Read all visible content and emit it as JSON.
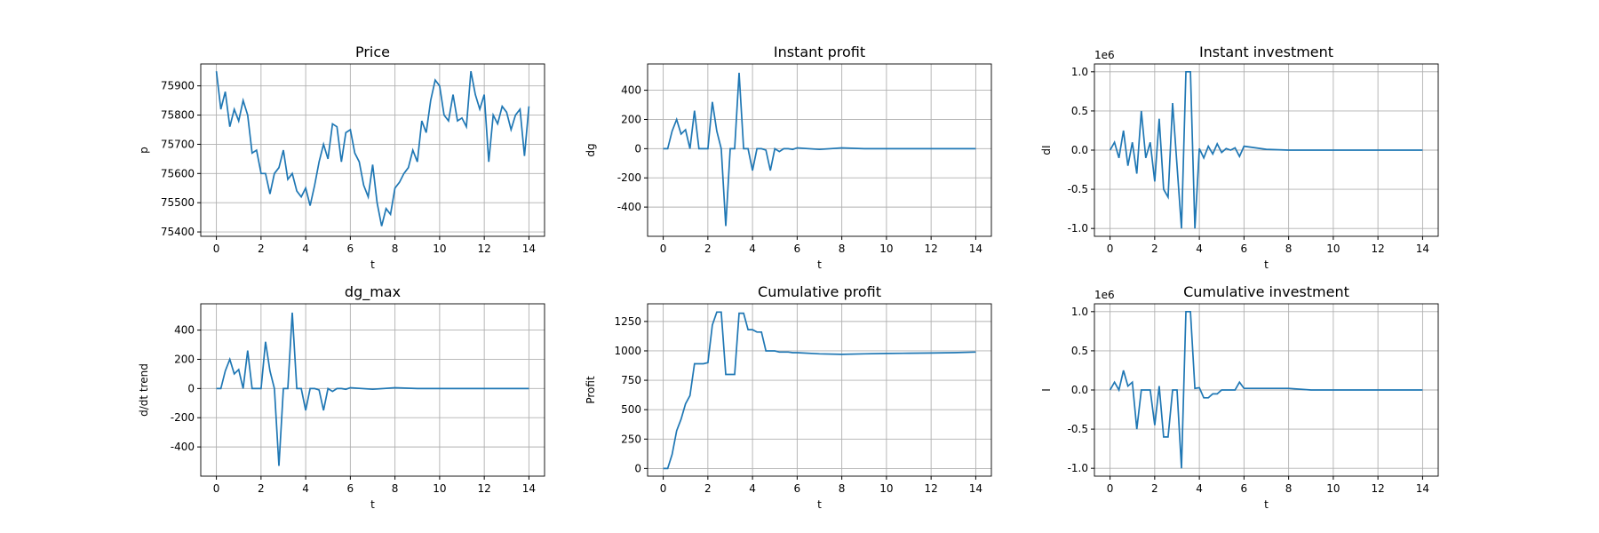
{
  "chart_data": [
    {
      "type": "line",
      "title": "Price",
      "xlabel": "t",
      "ylabel": "p",
      "color": "#1f77b4",
      "grid": true,
      "x": [
        0,
        0.2,
        0.4,
        0.6,
        0.8,
        1.0,
        1.2,
        1.4,
        1.6,
        1.8,
        2.0,
        2.2,
        2.4,
        2.6,
        2.8,
        3.0,
        3.2,
        3.4,
        3.6,
        3.8,
        4.0,
        4.2,
        4.4,
        4.6,
        4.8,
        5.0,
        5.2,
        5.4,
        5.6,
        5.8,
        6.0,
        6.2,
        6.4,
        6.6,
        6.8,
        7.0,
        7.2,
        7.4,
        7.6,
        7.8,
        8.0,
        8.2,
        8.4,
        8.6,
        8.8,
        9.0,
        9.2,
        9.4,
        9.6,
        9.8,
        10.0,
        10.2,
        10.4,
        10.6,
        10.8,
        11.0,
        11.2,
        11.4,
        11.6,
        11.8,
        12.0,
        12.2,
        12.4,
        12.6,
        12.8,
        13.0,
        13.2,
        13.4,
        13.6,
        13.8,
        14.0
      ],
      "values": [
        75950,
        75820,
        75880,
        75760,
        75820,
        75780,
        75850,
        75800,
        75670,
        75680,
        75600,
        75600,
        75530,
        75600,
        75620,
        75680,
        75580,
        75600,
        75540,
        75520,
        75550,
        75490,
        75560,
        75640,
        75700,
        75650,
        75770,
        75760,
        75640,
        75740,
        75750,
        75670,
        75640,
        75560,
        75520,
        75630,
        75500,
        75420,
        75480,
        75460,
        75550,
        75570,
        75600,
        75620,
        75680,
        75640,
        75780,
        75740,
        75850,
        75920,
        75900,
        75800,
        75780,
        75870,
        75780,
        75790,
        75760,
        75950,
        75870,
        75820,
        75870,
        75640,
        75800,
        75770,
        75830,
        75810,
        75750,
        75800,
        75820,
        75660,
        75830
      ],
      "xlim": [
        -0.7,
        14.7
      ],
      "xticks": [
        0,
        2,
        4,
        6,
        8,
        10,
        12,
        14
      ],
      "ylim": [
        75385,
        75975
      ],
      "yticks": [
        75400,
        75500,
        75600,
        75700,
        75800,
        75900
      ]
    },
    {
      "type": "line",
      "title": "Instant profit",
      "xlabel": "t",
      "ylabel": "dg",
      "color": "#1f77b4",
      "grid": true,
      "x": [
        0,
        0.2,
        0.4,
        0.6,
        0.8,
        1.0,
        1.2,
        1.4,
        1.6,
        1.8,
        2.0,
        2.2,
        2.4,
        2.6,
        2.8,
        3.0,
        3.2,
        3.4,
        3.6,
        3.8,
        4.0,
        4.2,
        4.4,
        4.6,
        4.8,
        5.0,
        5.2,
        5.4,
        5.6,
        5.8,
        6.0,
        7,
        8,
        9,
        10,
        11,
        12,
        13,
        14
      ],
      "values": [
        0,
        0,
        120,
        200,
        100,
        130,
        0,
        260,
        0,
        0,
        0,
        320,
        120,
        0,
        -530,
        0,
        0,
        520,
        0,
        0,
        -150,
        0,
        0,
        -10,
        -150,
        0,
        -20,
        0,
        0,
        -5,
        5,
        -5,
        5,
        0,
        0,
        0,
        0,
        0,
        0
      ],
      "xlim": [
        -0.7,
        14.7
      ],
      "xticks": [
        0,
        2,
        4,
        6,
        8,
        10,
        12,
        14
      ],
      "ylim": [
        -600,
        580
      ],
      "yticks": [
        -400,
        -200,
        0,
        200,
        400
      ]
    },
    {
      "type": "line",
      "title": "Instant investment",
      "xlabel": "t",
      "ylabel": "dI",
      "offset_label": "1e6",
      "color": "#1f77b4",
      "grid": true,
      "x": [
        0,
        0.2,
        0.4,
        0.6,
        0.8,
        1.0,
        1.2,
        1.4,
        1.6,
        1.8,
        2.0,
        2.2,
        2.4,
        2.6,
        2.8,
        3.0,
        3.2,
        3.4,
        3.6,
        3.8,
        4.0,
        4.2,
        4.4,
        4.6,
        4.8,
        5.0,
        5.2,
        5.4,
        5.6,
        5.8,
        6.0,
        7,
        8,
        9,
        10,
        11,
        12,
        13,
        14
      ],
      "values": [
        0,
        0.1,
        -0.1,
        0.25,
        -0.2,
        0.1,
        -0.3,
        0.5,
        -0.1,
        0.1,
        -0.4,
        0.4,
        -0.5,
        -0.6,
        0.6,
        -0.2,
        -1.0,
        1.0,
        1.0,
        -1.0,
        0.02,
        -0.1,
        0.05,
        -0.05,
        0.08,
        -0.03,
        0.02,
        0,
        0.03,
        -0.08,
        0.05,
        0.01,
        0,
        0,
        0,
        0,
        0,
        0,
        0
      ],
      "xlim": [
        -0.7,
        14.7
      ],
      "xticks": [
        0,
        2,
        4,
        6,
        8,
        10,
        12,
        14
      ],
      "ylim": [
        -1.1,
        1.1
      ],
      "yticks": [
        {
          "value": -1,
          "label": "-1.0"
        },
        -0.5,
        {
          "value": 0,
          "label": "0.0"
        },
        0.5,
        {
          "value": 1,
          "label": "1.0"
        }
      ]
    },
    {
      "type": "line",
      "title": "dg_max",
      "xlabel": "t",
      "ylabel": "d/dt trend",
      "color": "#1f77b4",
      "grid": true,
      "x": [
        0,
        0.2,
        0.4,
        0.6,
        0.8,
        1.0,
        1.2,
        1.4,
        1.6,
        1.8,
        2.0,
        2.2,
        2.4,
        2.6,
        2.8,
        3.0,
        3.2,
        3.4,
        3.6,
        3.8,
        4.0,
        4.2,
        4.4,
        4.6,
        4.8,
        5.0,
        5.2,
        5.4,
        5.6,
        5.8,
        6.0,
        7,
        8,
        9,
        10,
        11,
        12,
        13,
        14
      ],
      "values": [
        0,
        0,
        120,
        200,
        100,
        130,
        0,
        260,
        0,
        0,
        0,
        320,
        120,
        0,
        -530,
        0,
        0,
        520,
        0,
        0,
        -150,
        0,
        0,
        -10,
        -150,
        0,
        -20,
        0,
        0,
        -5,
        5,
        -5,
        5,
        0,
        0,
        0,
        0,
        0,
        0
      ],
      "xlim": [
        -0.7,
        14.7
      ],
      "xticks": [
        0,
        2,
        4,
        6,
        8,
        10,
        12,
        14
      ],
      "ylim": [
        -600,
        580
      ],
      "yticks": [
        -400,
        -200,
        0,
        200,
        400
      ]
    },
    {
      "type": "line",
      "title": "Cumulative profit",
      "xlabel": "t",
      "ylabel": "Profit",
      "color": "#1f77b4",
      "grid": true,
      "x": [
        0,
        0.2,
        0.4,
        0.6,
        0.8,
        1.0,
        1.2,
        1.4,
        1.6,
        1.8,
        2.0,
        2.2,
        2.4,
        2.6,
        2.8,
        3.0,
        3.2,
        3.4,
        3.6,
        3.8,
        4.0,
        4.2,
        4.4,
        4.6,
        4.8,
        5.0,
        5.2,
        5.4,
        5.6,
        5.8,
        6.0,
        7,
        8,
        9,
        10,
        11,
        12,
        13,
        14
      ],
      "values": [
        0,
        0,
        120,
        320,
        420,
        550,
        620,
        890,
        890,
        890,
        900,
        1220,
        1330,
        1330,
        800,
        800,
        800,
        1320,
        1320,
        1180,
        1180,
        1160,
        1160,
        1000,
        1000,
        1000,
        990,
        990,
        990,
        985,
        985,
        975,
        970,
        975,
        978,
        980,
        982,
        985,
        990
      ],
      "xlim": [
        -0.7,
        14.7
      ],
      "xticks": [
        0,
        2,
        4,
        6,
        8,
        10,
        12,
        14
      ],
      "ylim": [
        -65,
        1400
      ],
      "yticks": [
        0,
        250,
        500,
        750,
        1000,
        1250
      ]
    },
    {
      "type": "line",
      "title": "Cumulative investment",
      "xlabel": "t",
      "ylabel": "I",
      "offset_label": "1e6",
      "color": "#1f77b4",
      "grid": true,
      "x": [
        0,
        0.2,
        0.4,
        0.6,
        0.8,
        1.0,
        1.2,
        1.4,
        1.6,
        1.8,
        2.0,
        2.2,
        2.4,
        2.6,
        2.8,
        3.0,
        3.2,
        3.4,
        3.6,
        3.8,
        4.0,
        4.2,
        4.4,
        4.6,
        4.8,
        5.0,
        5.2,
        5.4,
        5.6,
        5.8,
        6.0,
        7,
        8,
        9,
        10,
        11,
        12,
        13,
        14
      ],
      "values": [
        0,
        0.1,
        0,
        0.25,
        0.05,
        0.1,
        -0.5,
        0,
        0,
        0,
        -0.45,
        0.05,
        -0.6,
        -0.6,
        0,
        0,
        -1.0,
        1.0,
        1.0,
        0.02,
        0.03,
        -0.1,
        -0.1,
        -0.05,
        -0.05,
        0,
        0,
        0,
        0,
        0.1,
        0.02,
        0.02,
        0.02,
        0,
        0,
        0,
        0,
        0,
        0
      ],
      "xlim": [
        -0.7,
        14.7
      ],
      "xticks": [
        0,
        2,
        4,
        6,
        8,
        10,
        12,
        14
      ],
      "ylim": [
        -1.1,
        1.1
      ],
      "yticks": [
        {
          "value": -1,
          "label": "-1.0"
        },
        -0.5,
        {
          "value": 0,
          "label": "0.0"
        },
        0.5,
        {
          "value": 1,
          "label": "1.0"
        }
      ]
    }
  ]
}
